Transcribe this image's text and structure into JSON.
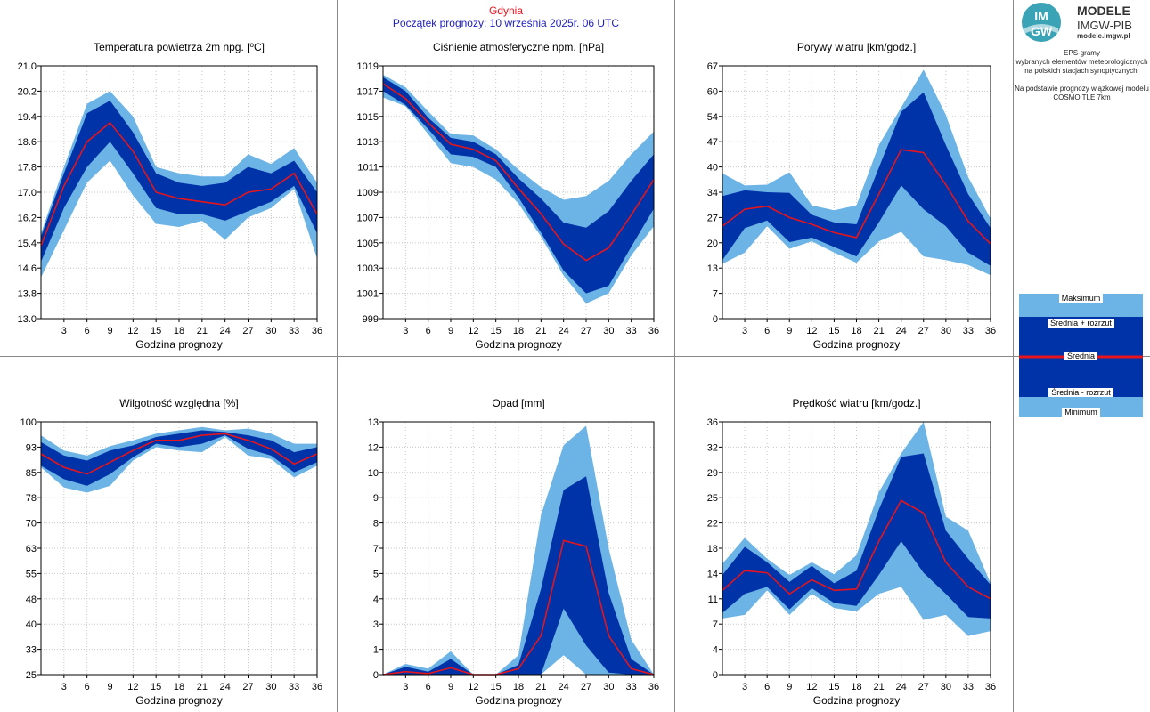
{
  "header": {
    "station": "Gdynia",
    "forecast_start": "Początek prognozy: 10 września 2025r. 06 UTC"
  },
  "logo": {
    "mark_line1": "IM",
    "mark_line2": "GW",
    "line1": "MODELE",
    "line2": "IMGW-PIB",
    "line3": "modele.imgw.pl"
  },
  "side_description": [
    "EPS-gramy",
    "wybranych elementów meteorologicznych",
    "na polskich stacjach  synoptycznych.",
    "",
    "Na podstawie prognozy wiązkowej modelu",
    "COSMO TLE 7km"
  ],
  "legend": {
    "max": "Maksimum",
    "mean_plus": "Średnia + rozrzut",
    "mean": "Średnia",
    "mean_minus": "Średnia - rozrzut",
    "min": "Minimum"
  },
  "colors": {
    "minmax_band": "#6cb3e6",
    "spread_band": "#0033a8",
    "mean_line": "#e8141c",
    "grid": "#c8c8c8",
    "station_title": "#e8141c",
    "forecast_start": "#1d1dc0"
  },
  "chart_data": [
    {
      "type": "area",
      "title_html": "Temperatura powietrza 2m npg. [<tspan baseline-shift='super' font-size='8'>o</tspan>C]",
      "title": "Temperatura powietrza 2m npg. [oC]",
      "xlabel": "Godzina prognozy",
      "x": [
        0,
        3,
        6,
        9,
        12,
        15,
        18,
        21,
        24,
        27,
        30,
        33,
        36
      ],
      "xticks": [
        "3",
        "6",
        "9",
        "12",
        "15",
        "18",
        "21",
        "24",
        "27",
        "30",
        "33",
        "36"
      ],
      "xlim": [
        0,
        36
      ],
      "ylim": [
        13.0,
        21.0
      ],
      "yticks": [
        "13.0",
        "13.8",
        "14.6",
        "15.4",
        "16.2",
        "17.0",
        "17.8",
        "18.6",
        "19.4",
        "20.2",
        "21.0"
      ],
      "series": [
        {
          "name": "Maksimum",
          "values": [
            15.7,
            17.8,
            19.8,
            20.2,
            19.4,
            17.8,
            17.6,
            17.5,
            17.5,
            18.2,
            17.9,
            18.4,
            17.3
          ]
        },
        {
          "name": "Średnia + rozrzut",
          "values": [
            15.6,
            17.6,
            19.5,
            19.9,
            18.9,
            17.6,
            17.3,
            17.2,
            17.3,
            17.8,
            17.6,
            18.0,
            17.0
          ]
        },
        {
          "name": "Średnia",
          "values": [
            15.3,
            17.2,
            18.6,
            19.2,
            18.3,
            17.0,
            16.8,
            16.7,
            16.6,
            17.0,
            17.1,
            17.6,
            16.3
          ]
        },
        {
          "name": "Średnia - rozrzut",
          "values": [
            14.8,
            16.5,
            17.8,
            18.6,
            17.6,
            16.5,
            16.3,
            16.3,
            16.1,
            16.4,
            16.7,
            17.2,
            15.7
          ]
        },
        {
          "name": "Minimum",
          "values": [
            14.3,
            15.8,
            17.3,
            18.0,
            16.9,
            16.0,
            15.9,
            16.1,
            15.5,
            16.2,
            16.5,
            17.1,
            14.9
          ]
        }
      ]
    },
    {
      "type": "area",
      "title": "Ciśnienie atmosferyczne npm. [hPa]",
      "xlabel": "Godzina prognozy",
      "x": [
        0,
        3,
        6,
        9,
        12,
        15,
        18,
        21,
        24,
        27,
        30,
        33,
        36
      ],
      "xticks": [
        "3",
        "6",
        "9",
        "12",
        "15",
        "18",
        "21",
        "24",
        "27",
        "30",
        "33",
        "36"
      ],
      "xlim": [
        0,
        36
      ],
      "ylim": [
        999,
        1019
      ],
      "yticks": [
        "999",
        "1001",
        "1003",
        "1005",
        "1007",
        "1009",
        "1011",
        "1013",
        "1015",
        "1017",
        "1019"
      ],
      "series": [
        {
          "name": "Maksimum",
          "values": [
            1018.3,
            1017.3,
            1015.4,
            1013.6,
            1013.5,
            1012.4,
            1010.8,
            1009.4,
            1008.4,
            1008.7,
            1009.9,
            1012.0,
            1013.8
          ]
        },
        {
          "name": "Średnia + rozrzut",
          "values": [
            1018.1,
            1017.0,
            1014.9,
            1013.3,
            1013.0,
            1012.0,
            1010.1,
            1008.5,
            1006.6,
            1006.2,
            1007.5,
            1009.9,
            1012.0
          ]
        },
        {
          "name": "Średnia",
          "values": [
            1017.6,
            1016.4,
            1014.5,
            1012.8,
            1012.4,
            1011.5,
            1009.3,
            1007.3,
            1004.9,
            1003.6,
            1004.6,
            1007.2,
            1010.0
          ]
        },
        {
          "name": "Średnia - rozrzut",
          "values": [
            1017.0,
            1015.9,
            1014.0,
            1012.0,
            1011.8,
            1011.0,
            1008.6,
            1005.8,
            1002.8,
            1001.0,
            1001.6,
            1004.7,
            1007.7
          ]
        },
        {
          "name": "Minimum",
          "values": [
            1016.5,
            1015.8,
            1013.6,
            1011.3,
            1011.0,
            1010.0,
            1008.1,
            1005.5,
            1002.4,
            1000.2,
            1001.0,
            1004.0,
            1006.3
          ]
        }
      ]
    },
    {
      "type": "area",
      "title": "Porywy wiatru [km/godz.]",
      "xlabel": "Godzina prognozy",
      "x": [
        0,
        3,
        6,
        9,
        12,
        15,
        18,
        21,
        24,
        27,
        30,
        33,
        36
      ],
      "xticks": [
        "3",
        "6",
        "9",
        "12",
        "15",
        "18",
        "21",
        "24",
        "27",
        "30",
        "33",
        "36"
      ],
      "xlim": [
        0,
        36
      ],
      "ylim": [
        0,
        67
      ],
      "yticks": [
        "0",
        "7",
        "13",
        "20",
        "27",
        "34",
        "40",
        "47",
        "54",
        "60",
        "67"
      ],
      "series": [
        {
          "name": "Maksimum",
          "values": [
            38.5,
            35.3,
            35.5,
            38.8,
            30.0,
            28.7,
            30.0,
            46.0,
            56.0,
            66.0,
            54.0,
            37.5,
            26.5
          ]
        },
        {
          "name": "Średnia + rozrzut",
          "values": [
            32.5,
            34.0,
            33.5,
            33.3,
            27.5,
            25.5,
            25.0,
            40.0,
            54.8,
            60.0,
            46.0,
            33.0,
            24.0
          ]
        },
        {
          "name": "Średnia",
          "values": [
            24.5,
            29.0,
            29.8,
            26.8,
            25.0,
            22.8,
            21.5,
            33.0,
            44.8,
            44.0,
            35.5,
            25.8,
            19.8
          ]
        },
        {
          "name": "Średnia - rozrzut",
          "values": [
            15.5,
            24.0,
            26.0,
            20.3,
            21.5,
            19.0,
            16.5,
            25.5,
            35.3,
            29.0,
            24.5,
            17.5,
            14.0
          ]
        },
        {
          "name": "Minimum",
          "values": [
            14.5,
            17.5,
            24.5,
            18.5,
            20.5,
            17.5,
            14.8,
            20.5,
            23.0,
            16.5,
            15.5,
            14.2,
            11.5
          ]
        }
      ]
    },
    {
      "type": "area",
      "title": "Wilgotność względna [%]",
      "xlabel": "Godzina prognozy",
      "x": [
        0,
        3,
        6,
        9,
        12,
        15,
        18,
        21,
        24,
        27,
        30,
        33,
        36
      ],
      "xticks": [
        "3",
        "6",
        "9",
        "12",
        "15",
        "18",
        "21",
        "24",
        "27",
        "30",
        "33",
        "36"
      ],
      "xlim": [
        0,
        36
      ],
      "ylim": [
        25,
        100
      ],
      "yticks": [
        "25",
        "33",
        "40",
        "48",
        "55",
        "63",
        "70",
        "78",
        "85",
        "93",
        "100"
      ],
      "series": [
        {
          "name": "Maksimum",
          "values": [
            96.0,
            91.5,
            90.0,
            92.8,
            94.5,
            96.5,
            97.5,
            98.5,
            97.5,
            98.0,
            96.5,
            93.5,
            93.5
          ]
        },
        {
          "name": "Średnia + rozrzut",
          "values": [
            94.0,
            90.0,
            88.5,
            91.5,
            93.0,
            95.5,
            96.5,
            97.5,
            97.0,
            96.0,
            94.5,
            91.0,
            92.5
          ]
        },
        {
          "name": "Średnia",
          "values": [
            90.5,
            86.5,
            84.5,
            88.0,
            91.5,
            94.5,
            94.5,
            96.0,
            96.5,
            94.5,
            92.0,
            87.5,
            90.5
          ]
        },
        {
          "name": "Średnia - rozrzut",
          "values": [
            87.0,
            83.0,
            81.0,
            84.5,
            89.5,
            93.5,
            92.5,
            93.5,
            96.0,
            92.0,
            90.0,
            85.0,
            88.0
          ]
        },
        {
          "name": "Minimum",
          "values": [
            86.5,
            80.5,
            79.0,
            81.0,
            88.5,
            92.5,
            91.5,
            91.0,
            95.5,
            90.0,
            89.0,
            83.5,
            87.0
          ]
        }
      ]
    },
    {
      "type": "area",
      "title": "Opad [mm]",
      "xlabel": "Godzina prognozy",
      "x": [
        0,
        3,
        6,
        9,
        12,
        15,
        18,
        21,
        24,
        27,
        30,
        33,
        36
      ],
      "xticks": [
        "3",
        "6",
        "9",
        "12",
        "15",
        "18",
        "21",
        "24",
        "27",
        "30",
        "33",
        "36"
      ],
      "xlim": [
        0,
        36
      ],
      "ylim": [
        0,
        13
      ],
      "yticks": [
        "0",
        "1",
        "3",
        "4",
        "5",
        "7",
        "8",
        "9",
        "10",
        "12",
        "13"
      ],
      "series": [
        {
          "name": "Maksimum",
          "values": [
            0.0,
            0.55,
            0.3,
            1.2,
            0.0,
            0.0,
            1.0,
            8.2,
            11.8,
            12.8,
            6.5,
            1.8,
            0.0
          ]
        },
        {
          "name": "Średnia + rozrzut",
          "values": [
            0.0,
            0.4,
            0.15,
            0.8,
            0.0,
            0.0,
            0.5,
            4.4,
            9.5,
            10.2,
            4.2,
            0.8,
            0.0
          ]
        },
        {
          "name": "Średnia",
          "values": [
            0.0,
            0.15,
            0.05,
            0.35,
            0.0,
            0.0,
            0.3,
            2.0,
            6.9,
            6.6,
            2.0,
            0.3,
            0.0
          ]
        },
        {
          "name": "Średnia - rozrzut",
          "values": [
            0.0,
            0.0,
            0.0,
            0.0,
            0.0,
            0.0,
            0.0,
            0.0,
            3.4,
            1.5,
            0.1,
            0.0,
            0.0
          ]
        },
        {
          "name": "Minimum",
          "values": [
            0.0,
            0.0,
            0.0,
            0.0,
            0.0,
            0.0,
            0.0,
            0.0,
            1.0,
            0.0,
            0.0,
            0.0,
            0.0
          ]
        }
      ]
    },
    {
      "type": "area",
      "title": "Prędkość wiatru [km/godz.]",
      "xlabel": "Godzina prognozy",
      "x": [
        0,
        3,
        6,
        9,
        12,
        15,
        18,
        21,
        24,
        27,
        30,
        33,
        36
      ],
      "xticks": [
        "3",
        "6",
        "9",
        "12",
        "15",
        "18",
        "21",
        "24",
        "27",
        "30",
        "33",
        "36"
      ],
      "xlim": [
        0,
        36
      ],
      "ylim": [
        0,
        36
      ],
      "yticks": [
        "0",
        "4",
        "7",
        "11",
        "14",
        "18",
        "22",
        "25",
        "29",
        "32",
        "36"
      ],
      "series": [
        {
          "name": "Maksimum",
          "values": [
            15.8,
            19.5,
            16.5,
            14.2,
            16.0,
            14.3,
            17.0,
            26.0,
            31.5,
            36.0,
            22.5,
            20.5,
            13.0
          ]
        },
        {
          "name": "Średnia + rozrzut",
          "values": [
            14.2,
            18.2,
            16.0,
            13.2,
            15.5,
            13.0,
            14.8,
            23.5,
            31.0,
            31.5,
            20.5,
            16.5,
            12.8
          ]
        },
        {
          "name": "Średnia",
          "values": [
            12.0,
            14.8,
            14.5,
            11.5,
            13.5,
            12.0,
            12.2,
            19.0,
            24.8,
            23.0,
            16.0,
            12.5,
            10.8
          ]
        },
        {
          "name": "Średnia - rozrzut",
          "values": [
            8.8,
            11.5,
            12.5,
            9.3,
            12.3,
            10.2,
            9.8,
            14.2,
            19.0,
            14.5,
            11.5,
            8.2,
            8.0
          ]
        },
        {
          "name": "Minimum",
          "values": [
            8.0,
            8.5,
            12.0,
            8.5,
            11.5,
            9.5,
            9.0,
            11.5,
            12.5,
            7.8,
            8.5,
            5.5,
            6.2
          ]
        }
      ]
    }
  ]
}
